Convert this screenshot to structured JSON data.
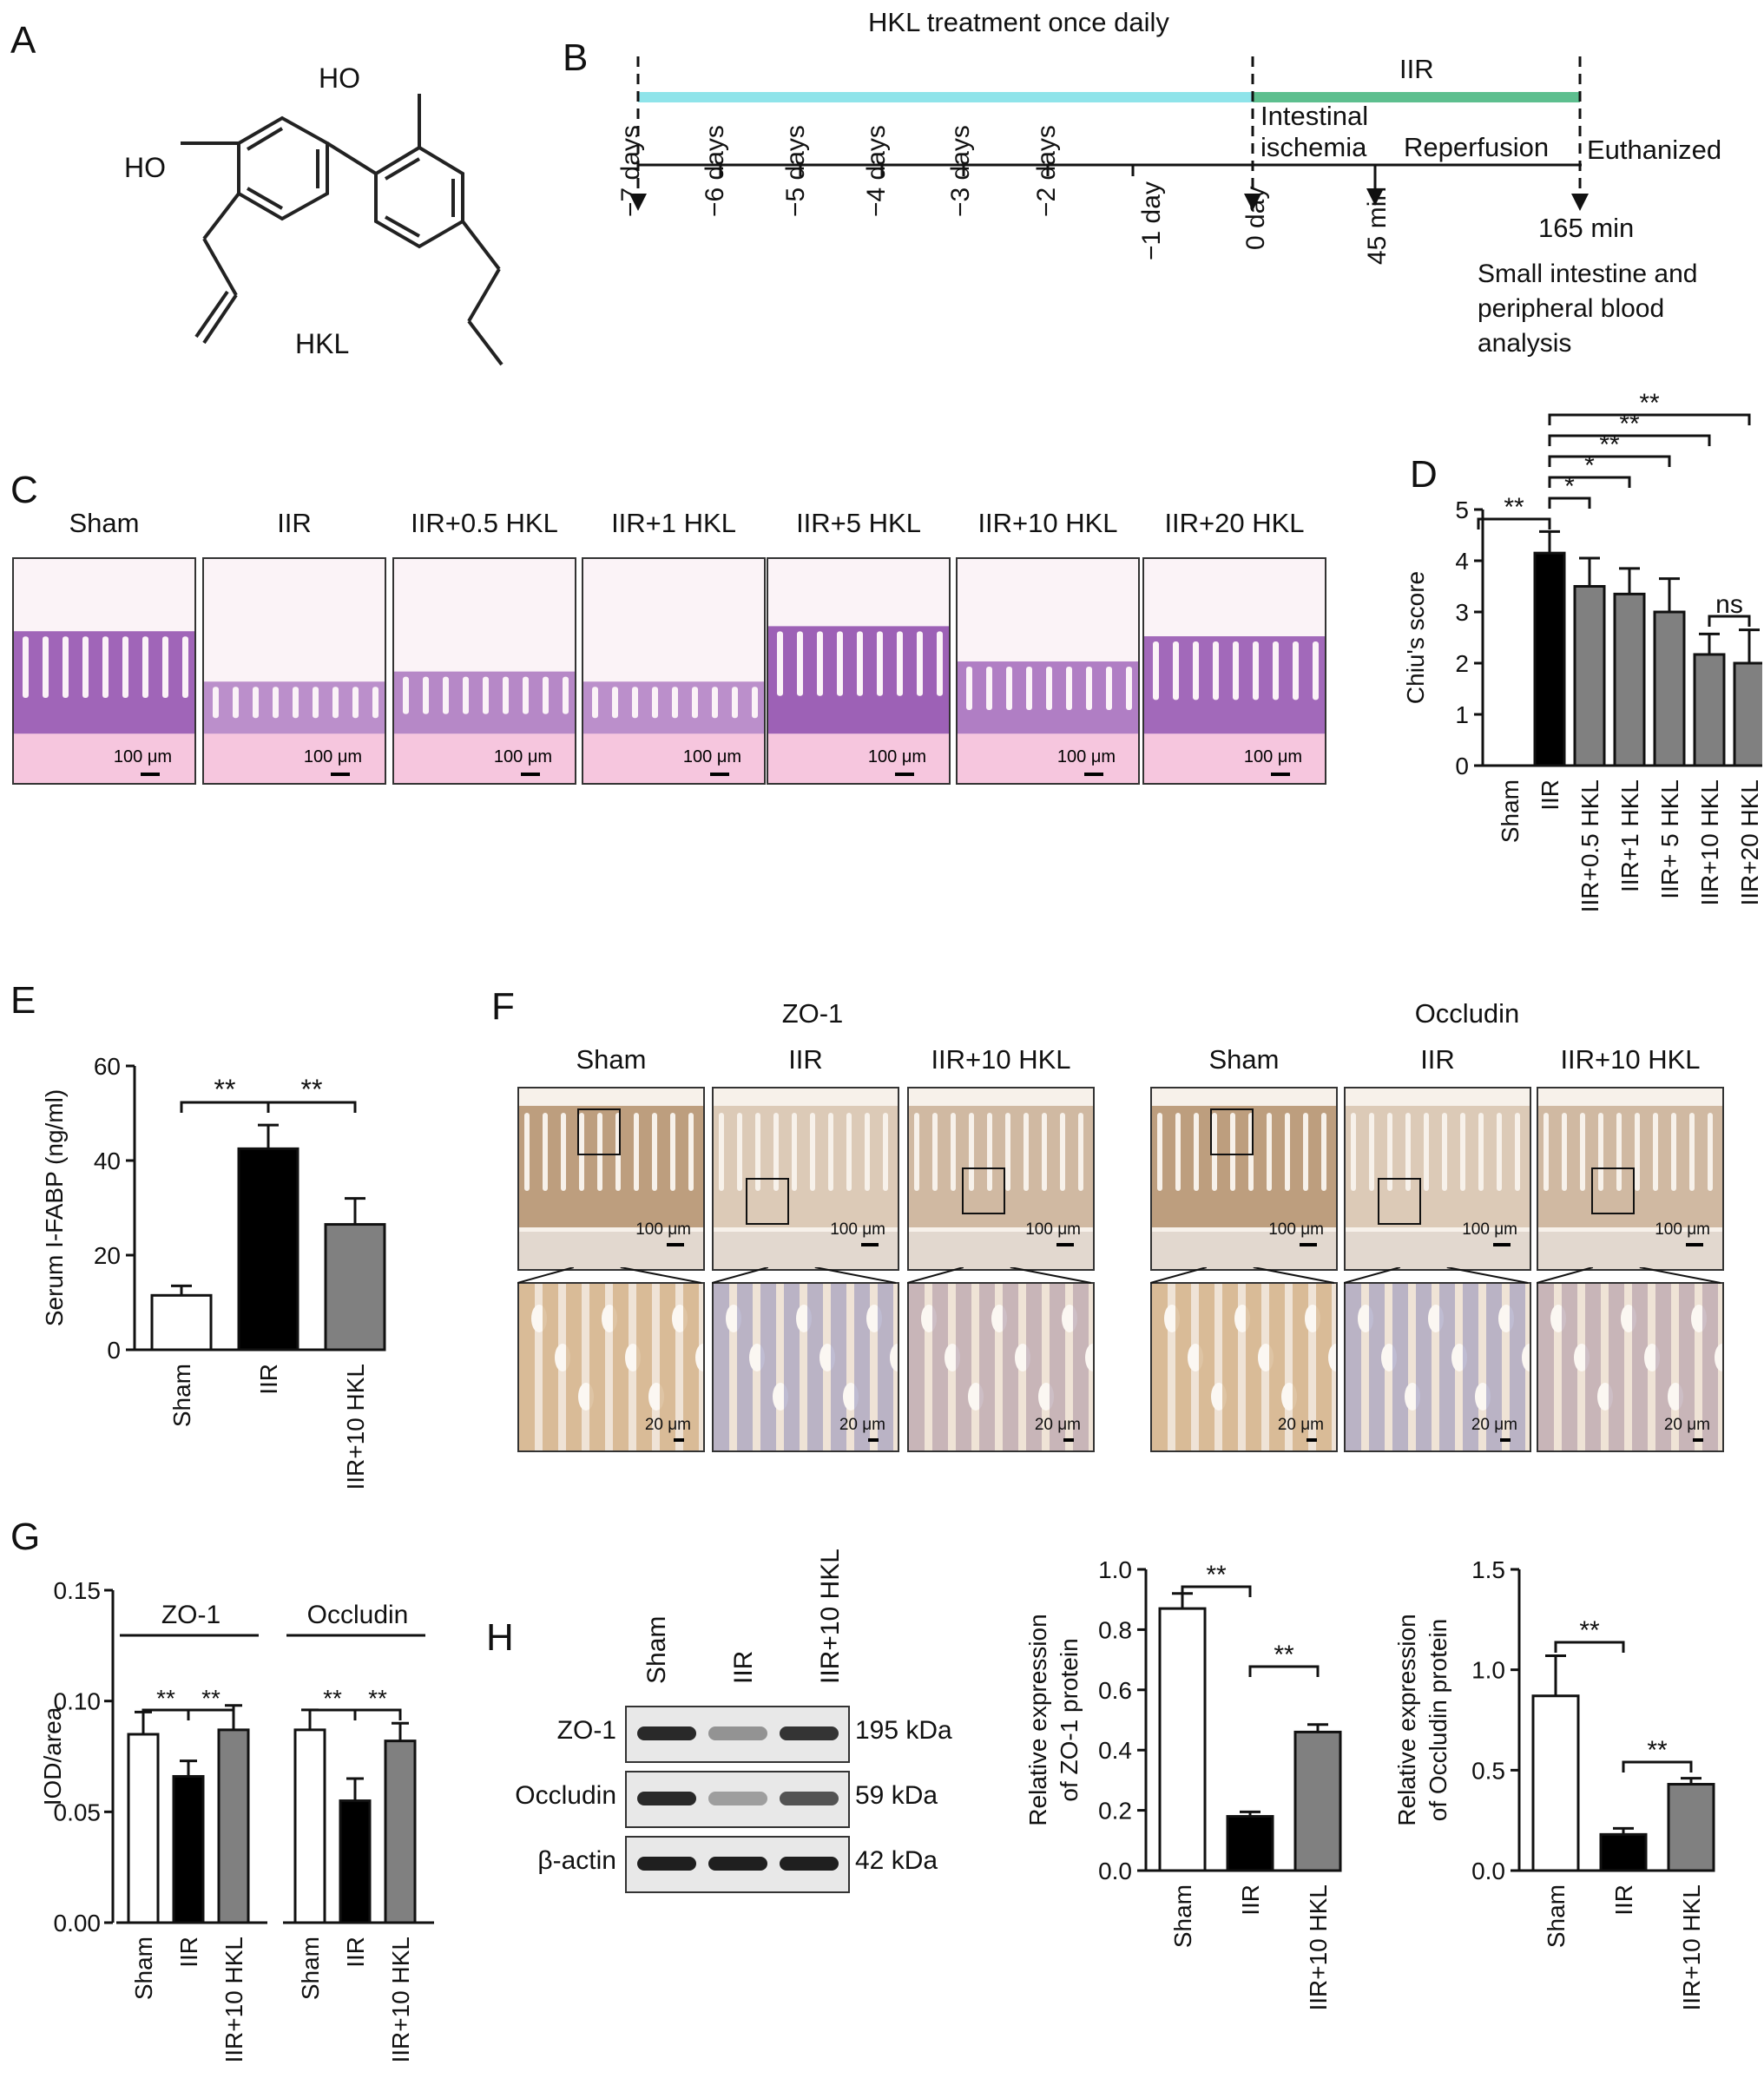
{
  "panels": {
    "A": {
      "label": "A",
      "compound": "HKL",
      "oh_left": "HO",
      "oh_top": "HO"
    },
    "B": {
      "label": "B",
      "title": "HKL treatment once daily",
      "iir": "IIR",
      "phase_ischemia_1": "Intestinal",
      "phase_ischemia_2": "ischemia",
      "phase_reperfusion": "Reperfusion",
      "euthanized": "Euthanized",
      "end_time": "165 min",
      "ticks": [
        "−7 days",
        "−6 days",
        "−5 days",
        "−4 days",
        "−3 days",
        "−2 days",
        "−1 day",
        "0 day",
        "45 min"
      ],
      "analysis": [
        "Small intestine and",
        "peripheral blood",
        "analysis"
      ],
      "colors": {
        "treatment": "#8fe4ea",
        "iir": "#5dbf8f"
      }
    },
    "C": {
      "label": "C",
      "images": [
        {
          "title": "Sham",
          "scale": "100 μm"
        },
        {
          "title": "IIR",
          "scale": "100 μm"
        },
        {
          "title": "IIR+0.5 HKL",
          "scale": "100 μm"
        },
        {
          "title": "IIR+1 HKL",
          "scale": "100 μm"
        },
        {
          "title": "IIR+5 HKL",
          "scale": "100 μm"
        },
        {
          "title": "IIR+10 HKL",
          "scale": "100 μm"
        },
        {
          "title": "IIR+20 HKL",
          "scale": "100 μm"
        }
      ]
    },
    "F": {
      "label": "F",
      "groups": [
        {
          "marker": "ZO-1",
          "cols": [
            {
              "title": "Sham",
              "scale_top": "100 μm",
              "scale_bottom": "20 μm"
            },
            {
              "title": "IIR",
              "scale_top": "100 μm",
              "scale_bottom": "20 μm"
            },
            {
              "title": "IIR+10 HKL",
              "scale_top": "100 μm",
              "scale_bottom": "20 μm"
            }
          ]
        },
        {
          "marker": "Occludin",
          "cols": [
            {
              "title": "Sham",
              "scale_top": "100 μm",
              "scale_bottom": "20 μm"
            },
            {
              "title": "IIR",
              "scale_top": "100 μm",
              "scale_bottom": "20 μm"
            },
            {
              "title": "IIR+10 HKL",
              "scale_top": "100 μm",
              "scale_bottom": "20 μm"
            }
          ]
        }
      ]
    },
    "H": {
      "label": "H",
      "lanes": [
        "Sham",
        "IIR",
        "IIR+10 HKL"
      ],
      "rows": [
        {
          "protein": "ZO-1",
          "size": "195 kDa",
          "intensity": [
            0.9,
            0.4,
            0.85
          ]
        },
        {
          "protein": "Occludin",
          "size": "59 kDa",
          "intensity": [
            0.9,
            0.35,
            0.7
          ]
        },
        {
          "protein": "β-actin",
          "size": "42 kDa",
          "intensity": [
            0.95,
            0.95,
            0.95
          ]
        }
      ]
    }
  },
  "chart_data": [
    {
      "panel": "D",
      "type": "bar",
      "categories": [
        "Sham",
        "IIR",
        "IIR+0.5 HKL",
        "IIR+1 HKL",
        "IIR+ 5 HKL",
        "IIR+10 HKL",
        "IIR+20 HKL"
      ],
      "values": [
        0,
        4.15,
        3.5,
        3.35,
        3.0,
        2.17,
        2.0
      ],
      "errors": [
        0,
        0.42,
        0.55,
        0.5,
        0.65,
        0.4,
        0.65
      ],
      "colors": [
        "#ffffff",
        "#000000",
        "#808080",
        "#808080",
        "#808080",
        "#808080",
        "#808080"
      ],
      "ylabel": "Chiu's score",
      "ylim": [
        0,
        5
      ],
      "yticks": [
        0,
        1,
        2,
        3,
        4,
        5
      ],
      "significance": [
        {
          "from": 0,
          "to": 1,
          "label": "**"
        },
        {
          "from": 1,
          "to": 2,
          "label": "*"
        },
        {
          "from": 1,
          "to": 3,
          "label": "*"
        },
        {
          "from": 1,
          "to": 4,
          "label": "**"
        },
        {
          "from": 1,
          "to": 5,
          "label": "**"
        },
        {
          "from": 1,
          "to": 6,
          "label": "**"
        },
        {
          "from": 5,
          "to": 6,
          "label": "ns"
        }
      ]
    },
    {
      "panel": "E",
      "type": "bar",
      "categories": [
        "Sham",
        "IIR",
        "IIR+10 HKL"
      ],
      "values": [
        11.5,
        42.5,
        26.5
      ],
      "errors": [
        2.0,
        5.0,
        5.5
      ],
      "colors": [
        "#ffffff",
        "#000000",
        "#808080"
      ],
      "ylabel": "Serum I-FABP (ng/ml)",
      "ylim": [
        0,
        60
      ],
      "yticks": [
        0,
        20,
        40,
        60
      ],
      "significance": [
        {
          "from": 0,
          "to": 1,
          "label": "**"
        },
        {
          "from": 1,
          "to": 2,
          "label": "**"
        }
      ]
    },
    {
      "panel": "G",
      "type": "bar",
      "ylabel": "IOD/area",
      "ylim": [
        0,
        0.15
      ],
      "yticks": [
        "0.00",
        "0.05",
        "0.10",
        "0.15"
      ],
      "groups": [
        {
          "name": "ZO-1",
          "categories": [
            "Sham",
            "IIR",
            "IIR+10 HKL"
          ],
          "values": [
            0.085,
            0.066,
            0.087
          ],
          "errors": [
            0.01,
            0.007,
            0.011
          ]
        },
        {
          "name": "Occludin",
          "categories": [
            "Sham",
            "IIR",
            "IIR+10 HKL"
          ],
          "values": [
            0.087,
            0.055,
            0.082
          ],
          "errors": [
            0.009,
            0.01,
            0.008
          ]
        }
      ],
      "colors": [
        "#ffffff",
        "#000000",
        "#808080"
      ],
      "significance_label": "**"
    },
    {
      "panel": "H1",
      "type": "bar",
      "categories": [
        "Sham",
        "IIR",
        "IIR+10 HKL"
      ],
      "values": [
        0.87,
        0.18,
        0.46
      ],
      "errors": [
        0.05,
        0.015,
        0.025
      ],
      "colors": [
        "#ffffff",
        "#000000",
        "#808080"
      ],
      "ylabel_lines": [
        "Relative expression",
        "of ZO-1 protein"
      ],
      "ylim": [
        0,
        1.0
      ],
      "yticks": [
        "0.0",
        "0.2",
        "0.4",
        "0.6",
        "0.8",
        "1.0"
      ],
      "significance": [
        {
          "from": 0,
          "to": 1,
          "label": "**"
        },
        {
          "from": 1,
          "to": 2,
          "label": "**"
        }
      ]
    },
    {
      "panel": "H2",
      "type": "bar",
      "categories": [
        "Sham",
        "IIR",
        "IIR+10 HKL"
      ],
      "values": [
        0.87,
        0.18,
        0.43
      ],
      "errors": [
        0.2,
        0.03,
        0.03
      ],
      "colors": [
        "#ffffff",
        "#000000",
        "#808080"
      ],
      "ylabel_lines": [
        "Relative expression",
        "of Occludin protein"
      ],
      "ylim": [
        0,
        1.5
      ],
      "yticks": [
        "0.0",
        "0.5",
        "1.0",
        "1.5"
      ],
      "significance": [
        {
          "from": 0,
          "to": 1,
          "label": "**"
        },
        {
          "from": 1,
          "to": 2,
          "label": "**"
        }
      ]
    }
  ]
}
